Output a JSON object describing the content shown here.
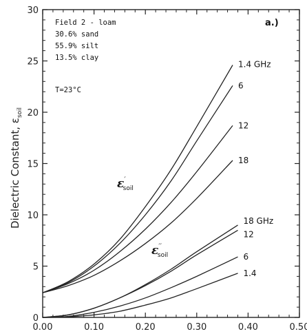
{
  "chart_data": {
    "type": "line",
    "xlim": [
      0.0,
      0.5
    ],
    "ylim": [
      0,
      30
    ],
    "x_ticks": [
      0.0,
      0.1,
      0.2,
      0.3,
      0.4,
      0.5
    ],
    "x_tick_labels": [
      "0.00",
      "0.10",
      "0.20",
      "0.30",
      "0.40",
      "0.50"
    ],
    "y_ticks": [
      0,
      5,
      10,
      15,
      20,
      25,
      30
    ],
    "y_tick_labels": [
      "0",
      "5",
      "10",
      "15",
      "20",
      "25",
      "30"
    ],
    "ylabel": "Dielectric Constant, ε",
    "ylabel_subscript": "soil",
    "panel_label": "a.)",
    "grid": false,
    "annotations": {
      "field": "Field 2 - loam",
      "sand": "30.6% sand",
      "silt": "55.9% silt",
      "clay": "13.5% clay",
      "temperature": "T=23°C",
      "real_part_symbol": "ε",
      "real_part_superscript": "′",
      "imag_part_symbol": "ε",
      "imag_part_superscript": "′′",
      "part_subscript": "soil"
    },
    "series": [
      {
        "name": "1.4 GHz",
        "group": "real",
        "x": [
          0.0,
          0.05,
          0.1,
          0.15,
          0.2,
          0.25,
          0.3,
          0.37
        ],
        "values": [
          2.4,
          3.5,
          5.2,
          7.6,
          10.8,
          14.4,
          18.6,
          24.6
        ]
      },
      {
        "name": "6",
        "group": "real",
        "x": [
          0.0,
          0.05,
          0.1,
          0.15,
          0.2,
          0.25,
          0.3,
          0.37
        ],
        "values": [
          2.4,
          3.4,
          5.0,
          7.2,
          10.0,
          13.3,
          17.2,
          22.6
        ]
      },
      {
        "name": "12",
        "group": "real",
        "x": [
          0.0,
          0.05,
          0.1,
          0.15,
          0.2,
          0.25,
          0.3,
          0.37
        ],
        "values": [
          2.4,
          3.3,
          4.6,
          6.4,
          8.6,
          11.2,
          14.2,
          18.7
        ]
      },
      {
        "name": "18",
        "group": "real",
        "x": [
          0.0,
          0.05,
          0.1,
          0.15,
          0.2,
          0.25,
          0.3,
          0.37
        ],
        "values": [
          2.4,
          3.1,
          4.1,
          5.5,
          7.2,
          9.2,
          11.6,
          15.3
        ]
      },
      {
        "name": "18 GHz",
        "group": "imag",
        "x": [
          0.0,
          0.05,
          0.1,
          0.15,
          0.2,
          0.25,
          0.3,
          0.38
        ],
        "values": [
          0.0,
          0.25,
          0.9,
          1.9,
          3.2,
          4.7,
          6.4,
          9.0
        ]
      },
      {
        "name": "12",
        "group": "imag",
        "x": [
          0.0,
          0.05,
          0.1,
          0.15,
          0.2,
          0.25,
          0.3,
          0.38
        ],
        "values": [
          0.0,
          0.25,
          0.9,
          1.9,
          3.1,
          4.5,
          6.1,
          8.5
        ]
      },
      {
        "name": "6",
        "group": "imag",
        "x": [
          0.0,
          0.05,
          0.1,
          0.15,
          0.2,
          0.25,
          0.3,
          0.38
        ],
        "values": [
          0.0,
          0.1,
          0.5,
          1.1,
          1.9,
          2.9,
          4.0,
          5.9
        ]
      },
      {
        "name": "1.4",
        "group": "imag",
        "x": [
          0.0,
          0.05,
          0.1,
          0.15,
          0.2,
          0.25,
          0.3,
          0.38
        ],
        "values": [
          0.0,
          0.05,
          0.25,
          0.6,
          1.2,
          1.9,
          2.8,
          4.3
        ]
      }
    ]
  }
}
